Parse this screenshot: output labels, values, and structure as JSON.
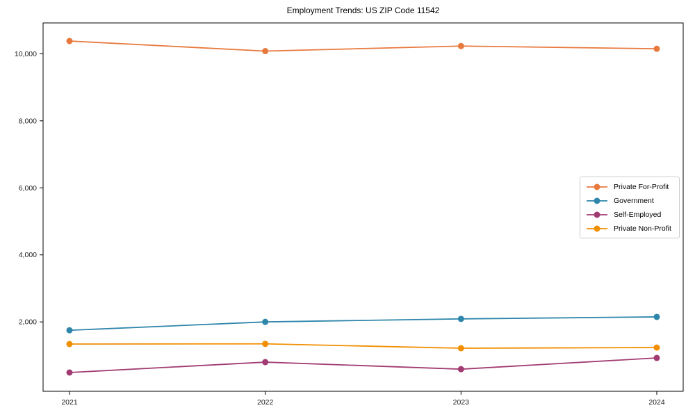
{
  "chart_data": {
    "type": "line",
    "title": "Employment Trends: US ZIP Code 11542",
    "x": [
      "2021",
      "2022",
      "2023",
      "2024"
    ],
    "series": [
      {
        "name": "Private For-Profit",
        "color": "#e8793d",
        "values": [
          10380,
          10080,
          10230,
          10150
        ]
      },
      {
        "name": "Government",
        "color": "#2e86ab",
        "values": [
          1750,
          2000,
          2090,
          2150
        ]
      },
      {
        "name": "Self-Employed",
        "color": "#a23b72",
        "values": [
          490,
          800,
          590,
          925
        ]
      },
      {
        "name": "Private Non-Profit",
        "color": "#f18f01",
        "values": [
          1340,
          1345,
          1215,
          1235
        ]
      }
    ],
    "yticks": [
      2000,
      4000,
      6000,
      8000,
      10000
    ],
    "ytick_labels": [
      "2,000",
      "4,000",
      "6,000",
      "8,000",
      "10,000"
    ],
    "ylim": [
      -70,
      10920
    ],
    "xlabel": "",
    "ylabel": "",
    "grid": false,
    "legend_position": "right-center",
    "axis_color": "#000000",
    "tick_label_color": "#1a1a1a"
  }
}
